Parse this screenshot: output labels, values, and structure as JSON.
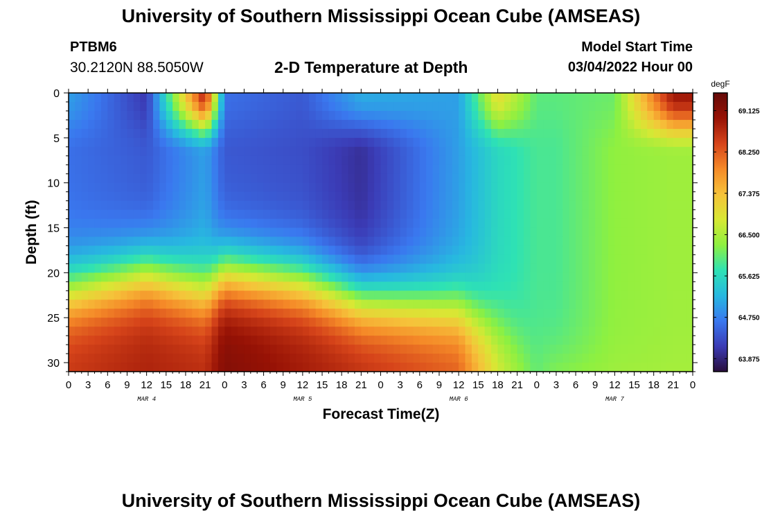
{
  "header": {
    "title": "University of Southern Mississippi Ocean Cube (AMSEAS)",
    "station_name": "PTBM6",
    "station_coords": "30.2120N  88.5050W",
    "start_label": "Model Start Time",
    "start_value": "03/04/2022 Hour 00"
  },
  "footer": {
    "title": "University of Southern Mississippi Ocean Cube (AMSEAS)"
  },
  "colors": {
    "scale": [
      "#2a0e3c",
      "#3b3bb5",
      "#3a78ef",
      "#27b8e0",
      "#2ee2b4",
      "#8ef040",
      "#d8e834",
      "#f6c23a",
      "#f58a28",
      "#d6441a",
      "#971205",
      "#650a08"
    ]
  },
  "chart_data": {
    "type": "heatmap",
    "title": "2-D Temperature at Depth",
    "xlabel": "Forecast Time(Z)",
    "ylabel": "Depth (ft)",
    "x_tick_labels": [
      "0",
      "3",
      "6",
      "9",
      "12",
      "15",
      "18",
      "21",
      "0",
      "3",
      "6",
      "9",
      "12",
      "15",
      "18",
      "21",
      "0",
      "3",
      "6",
      "9",
      "12",
      "15",
      "18",
      "21",
      "0",
      "3",
      "6",
      "9",
      "12",
      "15",
      "18",
      "21",
      "0"
    ],
    "day_labels": [
      {
        "label": "MAR 4",
        "hour": 12
      },
      {
        "label": "MAR 5",
        "hour": 36
      },
      {
        "label": "MAR 6",
        "hour": 60
      },
      {
        "label": "MAR 7",
        "hour": 84
      }
    ],
    "xlim_hours": [
      0,
      96
    ],
    "y_ticks": [
      0,
      5,
      10,
      15,
      20,
      25,
      30
    ],
    "ylim": [
      0,
      31
    ],
    "y_inverted": true,
    "colorbar": {
      "unit": "degF",
      "min": 63.6,
      "max": 69.5,
      "tick_values": [
        63.875,
        64.75,
        65.625,
        66.5,
        67.375,
        68.25,
        69.125
      ],
      "tick_labels": [
        "63.875",
        "64.750",
        "65.625",
        "66.500",
        "67.375",
        "68.250",
        "69.125"
      ]
    },
    "data_description_hours": [
      0,
      12,
      21,
      24,
      36,
      45,
      60,
      66,
      72,
      75,
      84,
      93,
      96
    ],
    "surface_temp_degF": [
      65.0,
      64.1,
      68.8,
      64.6,
      64.4,
      65.1,
      65.0,
      67.0,
      66.0,
      66.0,
      66.1,
      68.9,
      68.9
    ],
    "mid_temp_degF": [
      64.6,
      64.4,
      65.0,
      64.4,
      64.3,
      64.0,
      65.0,
      65.6,
      65.9,
      65.9,
      66.3,
      66.4,
      66.4
    ],
    "bottom_temp_degF": [
      68.6,
      68.8,
      68.7,
      69.2,
      68.9,
      68.7,
      68.3,
      66.9,
      66.1,
      66.4,
      66.5,
      66.5,
      66.5
    ],
    "thermocline_depth_ft": [
      22,
      20,
      22,
      20,
      21,
      23,
      24,
      26,
      29,
      30,
      31,
      31,
      31
    ]
  }
}
